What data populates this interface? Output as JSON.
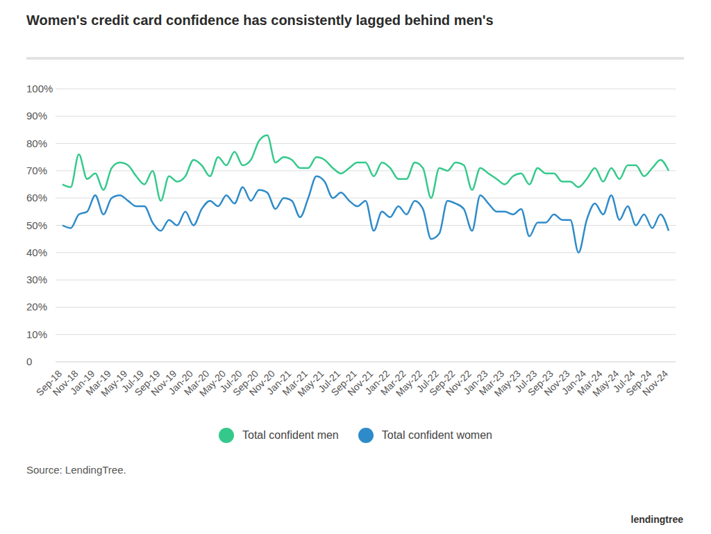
{
  "chart_data": {
    "type": "line",
    "title": "Women's credit card confidence has consistently lagged behind men's",
    "categories": [
      "Sep-18",
      null,
      "Nov-18",
      null,
      "Jan-19",
      null,
      "Mar-19",
      null,
      "May-19",
      null,
      "Jul-19",
      null,
      "Sep-19",
      null,
      "Nov-19",
      null,
      "Jan-20",
      null,
      "Mar-20",
      null,
      "May-20",
      null,
      "Jul-20",
      null,
      "Sep-20",
      null,
      "Nov-20",
      null,
      "Jan-21",
      null,
      "Mar-21",
      null,
      "May-21",
      null,
      "Jul-21",
      null,
      "Sep-21",
      null,
      "Nov-21",
      null,
      "Jan-22",
      null,
      "Mar-22",
      null,
      "May-22",
      null,
      "Jul-22",
      null,
      "Sep-22",
      null,
      "Nov-22",
      null,
      "Jan-23",
      null,
      "Mar-23",
      null,
      "May-23",
      null,
      "Jul-23",
      null,
      "Sep-23",
      null,
      "Nov-23",
      null,
      "Jan-24",
      null,
      "Mar-24",
      null,
      "May-24",
      null,
      "Jul-24",
      null,
      "Sep-24",
      null,
      "Nov-24"
    ],
    "series": [
      {
        "name": "Total confident men",
        "color": "#34c98b",
        "values": [
          65,
          64,
          76,
          67,
          69,
          63,
          71,
          73,
          72,
          68,
          65,
          70,
          59,
          68,
          66,
          68,
          74,
          72,
          68,
          75,
          72,
          77,
          72,
          74,
          81,
          83,
          73,
          75,
          74,
          71,
          71,
          75,
          74,
          71,
          69,
          71,
          73,
          73,
          68,
          73,
          71,
          67,
          67,
          73,
          71,
          60,
          71,
          70,
          73,
          72,
          63,
          71,
          69,
          67,
          65,
          68,
          69,
          65,
          71,
          69,
          69,
          66,
          66,
          64,
          67,
          71,
          66,
          71,
          67,
          72,
          72,
          68,
          71,
          74,
          70
        ]
      },
      {
        "name": "Total confident women",
        "color": "#2e8bc9",
        "values": [
          50,
          49,
          54,
          55,
          61,
          54,
          60,
          61,
          59,
          57,
          57,
          51,
          48,
          52,
          50,
          55,
          50,
          56,
          59,
          57,
          61,
          58,
          64,
          59,
          63,
          62,
          56,
          60,
          59,
          53,
          60,
          68,
          66,
          60,
          62,
          59,
          57,
          59,
          48,
          55,
          53,
          57,
          54,
          59,
          56,
          45,
          47,
          59,
          58,
          56,
          48,
          61,
          58,
          55,
          55,
          54,
          56,
          46,
          51,
          51,
          54,
          52,
          52,
          40,
          52,
          58,
          54,
          61,
          52,
          57,
          50,
          54,
          49,
          54,
          48
        ]
      }
    ],
    "ylim": [
      0,
      100
    ],
    "yticks": [
      0,
      {
        "value": 10,
        "label": "10%"
      },
      {
        "value": 20,
        "label": "20%"
      },
      {
        "value": 30,
        "label": "30%"
      },
      {
        "value": 40,
        "label": "40%"
      },
      {
        "value": 50,
        "label": "50%"
      },
      {
        "value": 60,
        "label": "60%"
      },
      {
        "value": 70,
        "label": "70%"
      },
      {
        "value": 80,
        "label": "80%"
      },
      {
        "value": 90,
        "label": "90%"
      },
      {
        "value": 100,
        "label": "100%"
      }
    ],
    "grid": true,
    "legend": "bottom",
    "annotations": [
      "Source: LendingTree.",
      "lendingtree"
    ]
  }
}
